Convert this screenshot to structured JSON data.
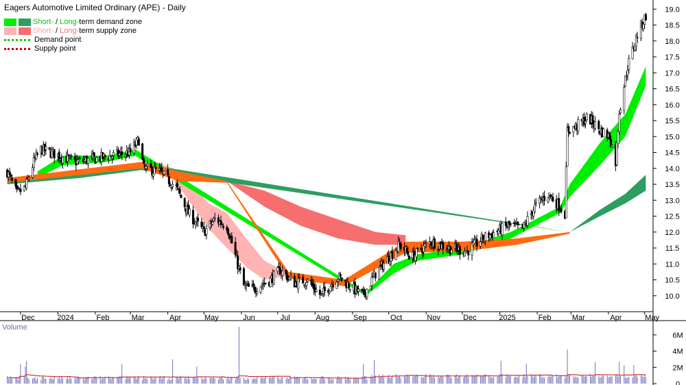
{
  "chart_data": {
    "type": "candlestick",
    "title": "Eagers Automotive Limited Ordinary (APE) - Daily",
    "legend": {
      "demand_zone": {
        "short": "Short-",
        "sep": " / ",
        "long": "Long-",
        "rest": "term demand zone"
      },
      "supply_zone": {
        "short": "Short-",
        "sep": " / ",
        "long": "Long-",
        "rest": "term supply zone"
      },
      "demand_point": "Demand point",
      "supply_point": "Supply point"
    },
    "x_tick_labels": [
      "Dec",
      "2024",
      "Feb",
      "Mar",
      "Apr",
      "May",
      "Jun",
      "Jul",
      "Aug",
      "Sep",
      "Oct",
      "Nov",
      "Dec",
      "2025",
      "Feb",
      "Mar",
      "Apr",
      "May"
    ],
    "y_tick_labels": [
      "19.0",
      "18.5",
      "18.0",
      "17.5",
      "17.0",
      "16.5",
      "16.0",
      "15.5",
      "15.0",
      "14.5",
      "14.0",
      "13.5",
      "13.0",
      "12.5",
      "12.0",
      "11.5",
      "11.0",
      "10.5",
      "10.0"
    ],
    "y_range": [
      9.5,
      19.2
    ],
    "volume_label": "Volume",
    "volume_tick_labels": [
      "6M",
      "4M",
      "2M",
      "0"
    ],
    "volume_range": [
      0,
      7000000
    ],
    "price_path": [
      {
        "date": "2023-11-20",
        "close": 13.9
      },
      {
        "date": "2023-11-28",
        "close": 13.2
      },
      {
        "date": "2023-12-05",
        "close": 13.4
      },
      {
        "date": "2023-12-12",
        "close": 14.2
      },
      {
        "date": "2023-12-18",
        "close": 14.6
      },
      {
        "date": "2024-01-02",
        "close": 14.4
      },
      {
        "date": "2024-01-15",
        "close": 14.2
      },
      {
        "date": "2024-02-01",
        "close": 14.3
      },
      {
        "date": "2024-02-15",
        "close": 14.4
      },
      {
        "date": "2024-03-01",
        "close": 14.5
      },
      {
        "date": "2024-03-08",
        "close": 14.9
      },
      {
        "date": "2024-03-12",
        "close": 14.0
      },
      {
        "date": "2024-03-25",
        "close": 13.9
      },
      {
        "date": "2024-04-08",
        "close": 13.4
      },
      {
        "date": "2024-04-18",
        "close": 12.6
      },
      {
        "date": "2024-05-01",
        "close": 12.0
      },
      {
        "date": "2024-05-10",
        "close": 12.4
      },
      {
        "date": "2024-05-20",
        "close": 12.2
      },
      {
        "date": "2024-06-03",
        "close": 10.3
      },
      {
        "date": "2024-06-10",
        "close": 10.2
      },
      {
        "date": "2024-06-25",
        "close": 10.5
      },
      {
        "date": "2024-07-03",
        "close": 10.8
      },
      {
        "date": "2024-07-15",
        "close": 10.4
      },
      {
        "date": "2024-07-25",
        "close": 10.5
      },
      {
        "date": "2024-08-06",
        "close": 10.0
      },
      {
        "date": "2024-08-20",
        "close": 10.6
      },
      {
        "date": "2024-08-30",
        "close": 10.3
      },
      {
        "date": "2024-09-10",
        "close": 10.0
      },
      {
        "date": "2024-09-20",
        "close": 10.7
      },
      {
        "date": "2024-10-01",
        "close": 11.2
      },
      {
        "date": "2024-10-10",
        "close": 11.6
      },
      {
        "date": "2024-10-20",
        "close": 11.2
      },
      {
        "date": "2024-11-05",
        "close": 11.7
      },
      {
        "date": "2024-11-20",
        "close": 11.5
      },
      {
        "date": "2024-12-05",
        "close": 11.4
      },
      {
        "date": "2024-12-18",
        "close": 11.8
      },
      {
        "date": "2025-01-08",
        "close": 12.2
      },
      {
        "date": "2025-01-20",
        "close": 12.1
      },
      {
        "date": "2025-01-30",
        "close": 12.8
      },
      {
        "date": "2025-02-10",
        "close": 13.2
      },
      {
        "date": "2025-02-20",
        "close": 12.8
      },
      {
        "date": "2025-02-24",
        "close": 12.6
      },
      {
        "date": "2025-02-26",
        "close": 15.2
      },
      {
        "date": "2025-03-05",
        "close": 15.3
      },
      {
        "date": "2025-03-15",
        "close": 15.6
      },
      {
        "date": "2025-03-25",
        "close": 15.2
      },
      {
        "date": "2025-04-02",
        "close": 15.0
      },
      {
        "date": "2025-04-07",
        "close": 14.2
      },
      {
        "date": "2025-04-10",
        "close": 15.8
      },
      {
        "date": "2025-04-17",
        "close": 17.2
      },
      {
        "date": "2025-04-25",
        "close": 18.2
      },
      {
        "date": "2025-05-02",
        "close": 18.8
      }
    ],
    "zones": {
      "short_demand": [
        {
          "date": "2023-12-15",
          "low": 13.7,
          "high": 13.9
        },
        {
          "date": "2024-01-05",
          "low": 14.1,
          "high": 14.4
        },
        {
          "date": "2024-02-10",
          "low": 14.2,
          "high": 14.4
        },
        {
          "date": "2024-03-05",
          "low": 14.4,
          "high": 14.6
        },
        {
          "date": "2024-09-12",
          "low": 10.0,
          "high": 10.1
        },
        {
          "date": "2024-10-05",
          "low": 10.7,
          "high": 11.0
        },
        {
          "date": "2024-10-25",
          "low": 11.1,
          "high": 11.3
        },
        {
          "date": "2024-12-01",
          "low": 11.3,
          "high": 11.5
        },
        {
          "date": "2025-01-10",
          "low": 11.8,
          "high": 12.0
        },
        {
          "date": "2025-02-20",
          "low": 12.6,
          "high": 12.8
        },
        {
          "date": "2025-02-28",
          "low": 13.1,
          "high": 13.5
        },
        {
          "date": "2025-03-25",
          "low": 14.1,
          "high": 14.8
        },
        {
          "date": "2025-04-15",
          "low": 15.0,
          "high": 15.7
        },
        {
          "date": "2025-05-02",
          "low": 16.6,
          "high": 17.2
        }
      ],
      "long_demand": [
        {
          "date": "2023-11-20",
          "low": 13.5,
          "high": 13.6
        },
        {
          "date": "2023-12-20",
          "low": 13.6,
          "high": 13.8
        },
        {
          "date": "2024-01-20",
          "low": 13.7,
          "high": 13.9
        },
        {
          "date": "2024-02-20",
          "low": 13.85,
          "high": 14.05
        },
        {
          "date": "2024-03-10",
          "low": 13.95,
          "high": 14.15
        },
        {
          "date": "2025-02-28",
          "low": 12.0,
          "high": 12.0
        },
        {
          "date": "2025-03-25",
          "low": 12.5,
          "high": 12.7
        },
        {
          "date": "2025-04-15",
          "low": 12.9,
          "high": 13.2
        },
        {
          "date": "2025-05-02",
          "low": 13.3,
          "high": 13.8
        }
      ],
      "short_supply": [
        {
          "date": "2024-03-15",
          "low": 14.2,
          "high": 14.3
        },
        {
          "date": "2024-04-05",
          "low": 13.7,
          "high": 14.0
        },
        {
          "date": "2024-04-20",
          "low": 12.9,
          "high": 13.5
        },
        {
          "date": "2024-05-05",
          "low": 12.1,
          "high": 12.9
        },
        {
          "date": "2024-05-20",
          "low": 11.5,
          "high": 12.6
        },
        {
          "date": "2024-06-05",
          "low": 10.9,
          "high": 11.8
        },
        {
          "date": "2024-06-20",
          "low": 10.5,
          "high": 11.1
        },
        {
          "date": "2024-07-05",
          "low": 10.6,
          "high": 10.8
        },
        {
          "date": "2024-07-20",
          "low": 10.5,
          "high": 10.6
        },
        {
          "date": "2024-08-05",
          "low": 10.4,
          "high": 10.5
        }
      ],
      "long_supply": [
        {
          "date": "2024-05-20",
          "low": 13.6,
          "high": 13.6
        },
        {
          "date": "2024-06-20",
          "low": 12.8,
          "high": 13.3
        },
        {
          "date": "2024-07-20",
          "low": 12.2,
          "high": 12.8
        },
        {
          "date": "2024-08-20",
          "low": 11.8,
          "high": 12.4
        },
        {
          "date": "2024-09-20",
          "low": 11.6,
          "high": 12.0
        },
        {
          "date": "2024-10-15",
          "low": 11.6,
          "high": 11.9
        }
      ],
      "overlap_orange": [
        {
          "date": "2023-11-20",
          "low": 13.55,
          "high": 13.7
        },
        {
          "date": "2024-03-10",
          "low": 14.0,
          "high": 14.2
        },
        {
          "date": "2024-04-10",
          "low": 13.6,
          "high": 13.9
        },
        {
          "date": "2024-05-20",
          "low": 13.55,
          "high": 13.6
        },
        {
          "date": "2024-07-10",
          "low": 10.55,
          "high": 10.75
        },
        {
          "date": "2024-08-25",
          "low": 10.3,
          "high": 10.5
        },
        {
          "date": "2024-10-15",
          "low": 11.35,
          "high": 11.7
        },
        {
          "date": "2024-12-01",
          "low": 11.4,
          "high": 11.7
        },
        {
          "date": "2025-01-15",
          "low": 11.6,
          "high": 11.8
        },
        {
          "date": "2025-02-28",
          "low": 11.95,
          "high": 12.0
        }
      ]
    },
    "volume_path": [
      {
        "date": "2023-11-20",
        "volume": 400000
      },
      {
        "date": "2024-05-01",
        "volume": 500000
      },
      {
        "date": "2024-05-30",
        "volume": 7000000
      },
      {
        "date": "2024-06-05",
        "volume": 900000
      },
      {
        "date": "2024-10-10",
        "volume": 1000000
      },
      {
        "date": "2025-02-26",
        "volume": 4200000
      },
      {
        "date": "2025-04-10",
        "volume": 2700000
      },
      {
        "date": "2025-05-02",
        "volume": 900000
      }
    ],
    "colors": {
      "short_demand": "#00ee00",
      "long_demand": "#2e9e60",
      "short_supply": "#ffb3b3",
      "long_supply": "#f76e6e",
      "overlap": "#ff6a13",
      "demand_point": "#00cc00",
      "supply_point": "#cc0000",
      "volume_bar": "#7070c0",
      "volume_avg": "#cc3333"
    }
  }
}
